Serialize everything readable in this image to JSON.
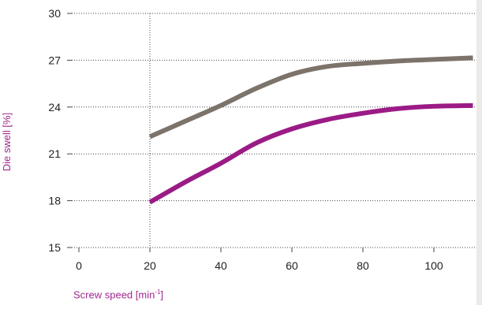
{
  "chart_data": {
    "type": "line",
    "title": "",
    "xlabel_main": "Screw speed [min",
    "xlabel_sup": "-1",
    "xlabel_end": "]",
    "ylabel": "Die swell [%]",
    "xlim": [
      -2,
      112
    ],
    "ylim": [
      15,
      30
    ],
    "xticks": [
      0,
      20,
      40,
      60,
      80,
      100
    ],
    "yticks": [
      15,
      18,
      21,
      24,
      27,
      30
    ],
    "grid": "dotted-horizontal",
    "reference_line_x": 20,
    "series": [
      {
        "color": "#7c736b",
        "x": [
          20,
          30,
          40,
          50,
          60,
          70,
          80,
          90,
          100,
          111
        ],
        "y": [
          22.1,
          23.1,
          24.1,
          25.2,
          26.1,
          26.6,
          26.8,
          26.95,
          27.05,
          27.15
        ]
      },
      {
        "color": "#9b1b86",
        "x": [
          20,
          30,
          40,
          50,
          60,
          70,
          80,
          90,
          100,
          111
        ],
        "y": [
          17.9,
          19.2,
          20.4,
          21.7,
          22.6,
          23.2,
          23.6,
          23.9,
          24.05,
          24.1
        ]
      }
    ]
  }
}
